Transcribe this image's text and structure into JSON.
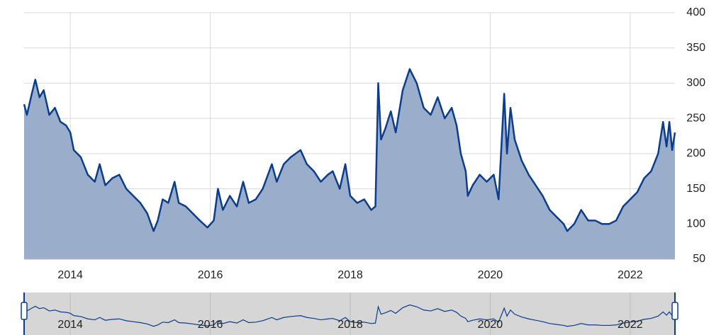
{
  "chart_data": {
    "type": "area",
    "x": [
      2013.34,
      2013.38,
      2013.45,
      2013.5,
      2013.56,
      2013.62,
      2013.7,
      2013.78,
      2013.86,
      2013.94,
      2014.0,
      2014.05,
      2014.15,
      2014.25,
      2014.35,
      2014.42,
      2014.5,
      2014.6,
      2014.7,
      2014.8,
      2014.9,
      2015.0,
      2015.1,
      2015.19,
      2015.25,
      2015.32,
      2015.4,
      2015.49,
      2015.55,
      2015.65,
      2015.75,
      2015.85,
      2015.96,
      2016.05,
      2016.11,
      2016.18,
      2016.28,
      2016.38,
      2016.47,
      2016.55,
      2016.65,
      2016.75,
      2016.88,
      2016.95,
      2017.05,
      2017.15,
      2017.29,
      2017.38,
      2017.48,
      2017.58,
      2017.68,
      2017.75,
      2017.85,
      2017.93,
      2018.0,
      2018.1,
      2018.2,
      2018.3,
      2018.36,
      2018.4,
      2018.44,
      2018.5,
      2018.58,
      2018.65,
      2018.75,
      2018.85,
      2018.95,
      2019.05,
      2019.15,
      2019.25,
      2019.35,
      2019.45,
      2019.52,
      2019.58,
      2019.65,
      2019.68,
      2019.75,
      2019.85,
      2019.95,
      2020.05,
      2020.12,
      2020.2,
      2020.24,
      2020.29,
      2020.35,
      2020.45,
      2020.55,
      2020.65,
      2020.75,
      2020.85,
      2020.95,
      2021.05,
      2021.1,
      2021.2,
      2021.3,
      2021.4,
      2021.5,
      2021.6,
      2021.7,
      2021.8,
      2021.9,
      2022.0,
      2022.1,
      2022.2,
      2022.3,
      2022.4,
      2022.47,
      2022.52,
      2022.56,
      2022.6,
      2022.64
    ],
    "values": [
      270,
      255,
      285,
      305,
      280,
      290,
      255,
      265,
      245,
      240,
      230,
      205,
      195,
      170,
      160,
      185,
      155,
      165,
      170,
      150,
      140,
      130,
      115,
      90,
      105,
      135,
      130,
      160,
      130,
      125,
      115,
      105,
      95,
      105,
      150,
      120,
      140,
      125,
      160,
      130,
      135,
      150,
      185,
      160,
      185,
      195,
      205,
      185,
      175,
      160,
      170,
      175,
      150,
      185,
      140,
      130,
      135,
      120,
      125,
      300,
      220,
      235,
      260,
      230,
      290,
      320,
      300,
      265,
      255,
      280,
      250,
      265,
      240,
      200,
      175,
      140,
      155,
      170,
      160,
      170,
      135,
      285,
      200,
      265,
      220,
      190,
      170,
      155,
      140,
      120,
      110,
      100,
      90,
      100,
      120,
      105,
      105,
      100,
      100,
      105,
      125,
      135,
      145,
      165,
      175,
      200,
      245,
      210,
      245,
      205,
      230
    ],
    "color": "#0b3d8c",
    "fill": "#9aaecb",
    "xlim": [
      2013.34,
      2022.64
    ],
    "xticks": [
      2014,
      2016,
      2018,
      2020,
      2022
    ],
    "ylim": [
      50,
      400
    ],
    "yticks": [
      50,
      100,
      150,
      200,
      250,
      300,
      350,
      400
    ],
    "grid": true
  }
}
